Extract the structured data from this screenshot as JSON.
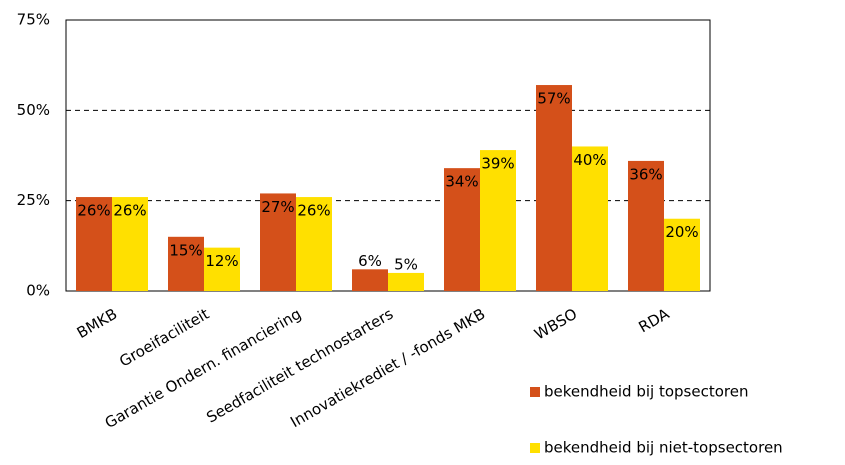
{
  "chart_data": {
    "type": "bar",
    "categories": [
      "BMKB",
      "Groeifaciliteit",
      "Garantie Ondern. financiering",
      "Seedfaciliteit technostarters",
      "Innovatiekrediet / -fonds MKB",
      "WBSO",
      "RDA"
    ],
    "series": [
      {
        "name": "bekendheid bij topsectoren",
        "color": "#d4501a",
        "values": [
          26,
          15,
          27,
          6,
          34,
          57,
          36
        ],
        "value_labels": [
          "26%",
          "15%",
          "27%",
          "6%",
          "34%",
          "57%",
          "36%"
        ]
      },
      {
        "name": "bekendheid bij niet-topsectoren",
        "color": "#ffe000",
        "values": [
          26,
          12,
          26,
          5,
          39,
          40,
          20
        ],
        "value_labels": [
          "26%",
          "12%",
          "26%",
          "5%",
          "39%",
          "40%",
          "20%"
        ]
      }
    ],
    "ylim": [
      0,
      75
    ],
    "yticks": [
      {
        "value": 0,
        "label": "0%"
      },
      {
        "value": 25,
        "label": "25%"
      },
      {
        "value": 50,
        "label": "50%"
      },
      {
        "value": 75,
        "label": "75%"
      }
    ],
    "grid": true
  }
}
